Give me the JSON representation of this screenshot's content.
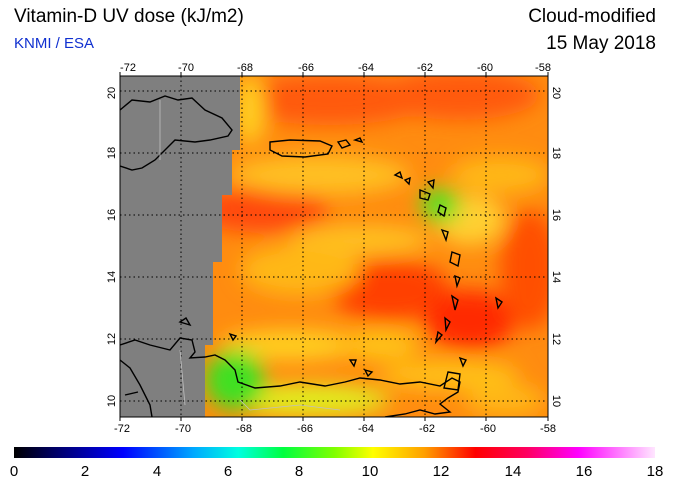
{
  "header": {
    "title": "Vitamin-D UV dose (kJ/m2)",
    "source": "KNMI / ESA",
    "product": "Cloud-modified",
    "date": "15 May 2018"
  },
  "map": {
    "lon_range": [
      -72,
      -58
    ],
    "lat_range": [
      9.5,
      20.5
    ],
    "lon_ticks": [
      "-72",
      "-70",
      "-68",
      "-66",
      "-64",
      "-62",
      "-60",
      "-58"
    ],
    "lat_ticks": [
      "10",
      "12",
      "14",
      "16",
      "18",
      "20"
    ],
    "no_data_color": "#7f7f7f",
    "coastline_color": "#000000",
    "grid_style": "dotted"
  },
  "colorbar": {
    "min": 0,
    "max": 18,
    "labels": [
      "0",
      "2",
      "4",
      "6",
      "8",
      "10",
      "12",
      "14",
      "16",
      "18"
    ],
    "colors": [
      "#000000",
      "#000080",
      "#0000ff",
      "#00a0ff",
      "#00ffff",
      "#00ff80",
      "#00ff00",
      "#80ff00",
      "#ffff00",
      "#ffc000",
      "#ff8000",
      "#ff0000",
      "#e00000",
      "#ff0080",
      "#ff00ff",
      "#ff80ff",
      "#ffc0ff"
    ]
  }
}
